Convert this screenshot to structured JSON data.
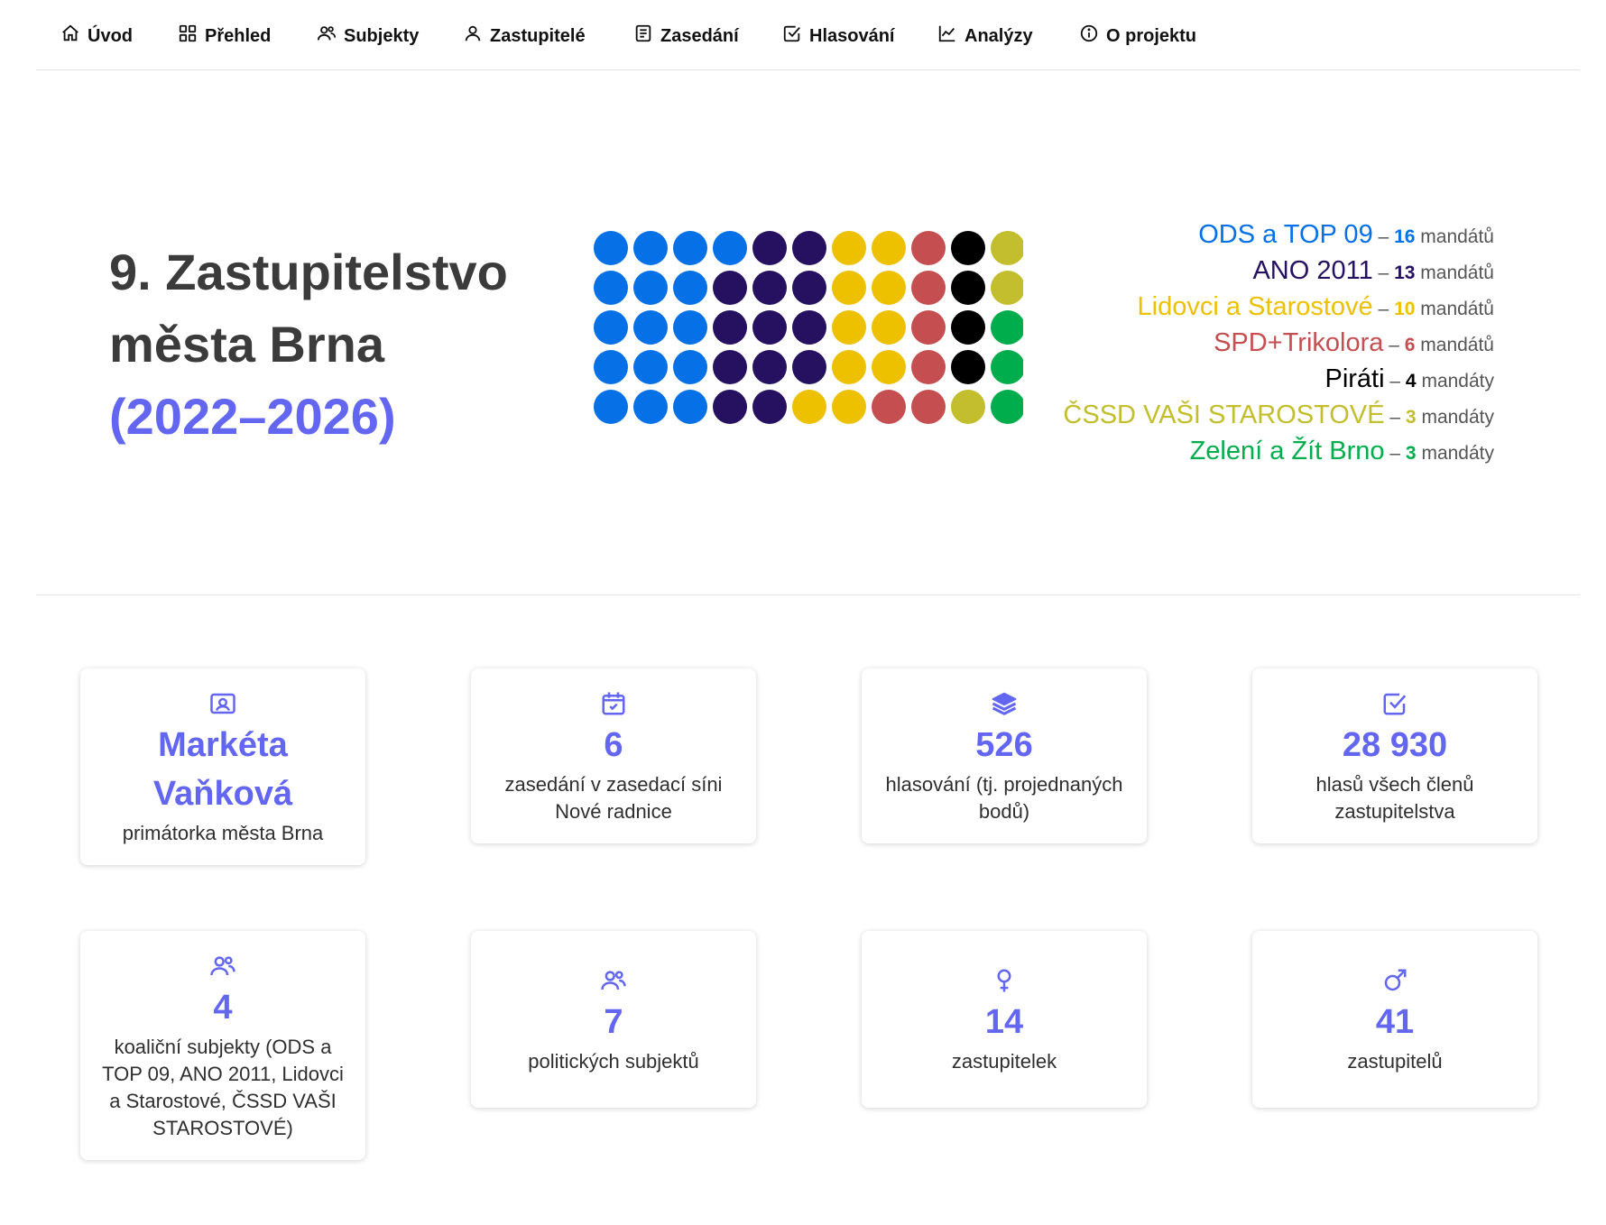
{
  "nav": {
    "items": [
      {
        "label": "Úvod",
        "icon": "home-icon"
      },
      {
        "label": "Přehled",
        "icon": "grid-icon"
      },
      {
        "label": "Subjekty",
        "icon": "users-icon"
      },
      {
        "label": "Zastupitelé",
        "icon": "user-icon"
      },
      {
        "label": "Zasedání",
        "icon": "document-icon"
      },
      {
        "label": "Hlasování",
        "icon": "checkbox-icon"
      },
      {
        "label": "Analýzy",
        "icon": "chart-line-icon"
      },
      {
        "label": "O projektu",
        "icon": "info-icon"
      }
    ]
  },
  "hero": {
    "title_line1": "9. Zastupitelstvo",
    "title_line2": "města Brna",
    "years": "(2022–2026)"
  },
  "legend": [
    {
      "name": "ODS a TOP 09",
      "count": "16",
      "unit": "mandátů",
      "color": "#0670e6"
    },
    {
      "name": "ANO 2011",
      "count": "13",
      "unit": "mandátů",
      "color": "#261060"
    },
    {
      "name": "Lidovci a Starostové",
      "count": "10",
      "unit": "mandátů",
      "color": "#edc000"
    },
    {
      "name": "SPD+Trikolora",
      "count": "6",
      "unit": "mandátů",
      "color": "#c44e50"
    },
    {
      "name": "Piráti",
      "count": "4",
      "unit": "mandáty",
      "color": "#000000"
    },
    {
      "name": "ČSSD VAŠI STAROSTOVÉ",
      "count": "3",
      "unit": "mandáty",
      "color": "#c2be2d"
    },
    {
      "name": "Zelení a Žít Brno",
      "count": "3",
      "unit": "mandáty",
      "color": "#00ad4c"
    }
  ],
  "seat_grid": {
    "columns": 11,
    "rows": 5,
    "cells": [
      [
        "#0670e6",
        "#0670e6",
        "#0670e6",
        "#0670e6",
        "#261060",
        "#261060",
        "#edc000",
        "#edc000",
        "#c44e50",
        "#000000",
        "#c2be2d"
      ],
      [
        "#0670e6",
        "#0670e6",
        "#0670e6",
        "#261060",
        "#261060",
        "#261060",
        "#edc000",
        "#edc000",
        "#c44e50",
        "#000000",
        "#c2be2d"
      ],
      [
        "#0670e6",
        "#0670e6",
        "#0670e6",
        "#261060",
        "#261060",
        "#261060",
        "#edc000",
        "#edc000",
        "#c44e50",
        "#000000",
        "#00ad4c"
      ],
      [
        "#0670e6",
        "#0670e6",
        "#0670e6",
        "#261060",
        "#261060",
        "#261060",
        "#edc000",
        "#edc000",
        "#c44e50",
        "#000000",
        "#00ad4c"
      ],
      [
        "#0670e6",
        "#0670e6",
        "#0670e6",
        "#261060",
        "#261060",
        "#edc000",
        "#edc000",
        "#c44e50",
        "#c44e50",
        "#c2be2d",
        "#00ad4c"
      ]
    ]
  },
  "cards": [
    {
      "icon": "id-card-icon",
      "value": "Markéta Vaňková",
      "label": "primátorka města Brna"
    },
    {
      "icon": "calendar-check-icon",
      "value": "6",
      "label": "zasedání v zasedací síni Nové radnice"
    },
    {
      "icon": "layers-icon",
      "value": "526",
      "label": "hlasování (tj. projednaných bodů)"
    },
    {
      "icon": "checkbox-icon",
      "value": "28 930",
      "label": "hlasů všech členů zastupitelstva"
    },
    {
      "icon": "users-icon",
      "value": "4",
      "label": "koaliční subjekty (ODS a TOP 09, ANO 2011, Lidovci a Starostové, ČSSD VAŠI STAROSTOVÉ)"
    },
    {
      "icon": "users-icon",
      "value": "7",
      "label": "politických subjektů"
    },
    {
      "icon": "female-icon",
      "value": "14",
      "label": "zastupitelek"
    },
    {
      "icon": "male-icon",
      "value": "41",
      "label": "zastupitelů"
    }
  ],
  "accent_color": "#6366f1"
}
